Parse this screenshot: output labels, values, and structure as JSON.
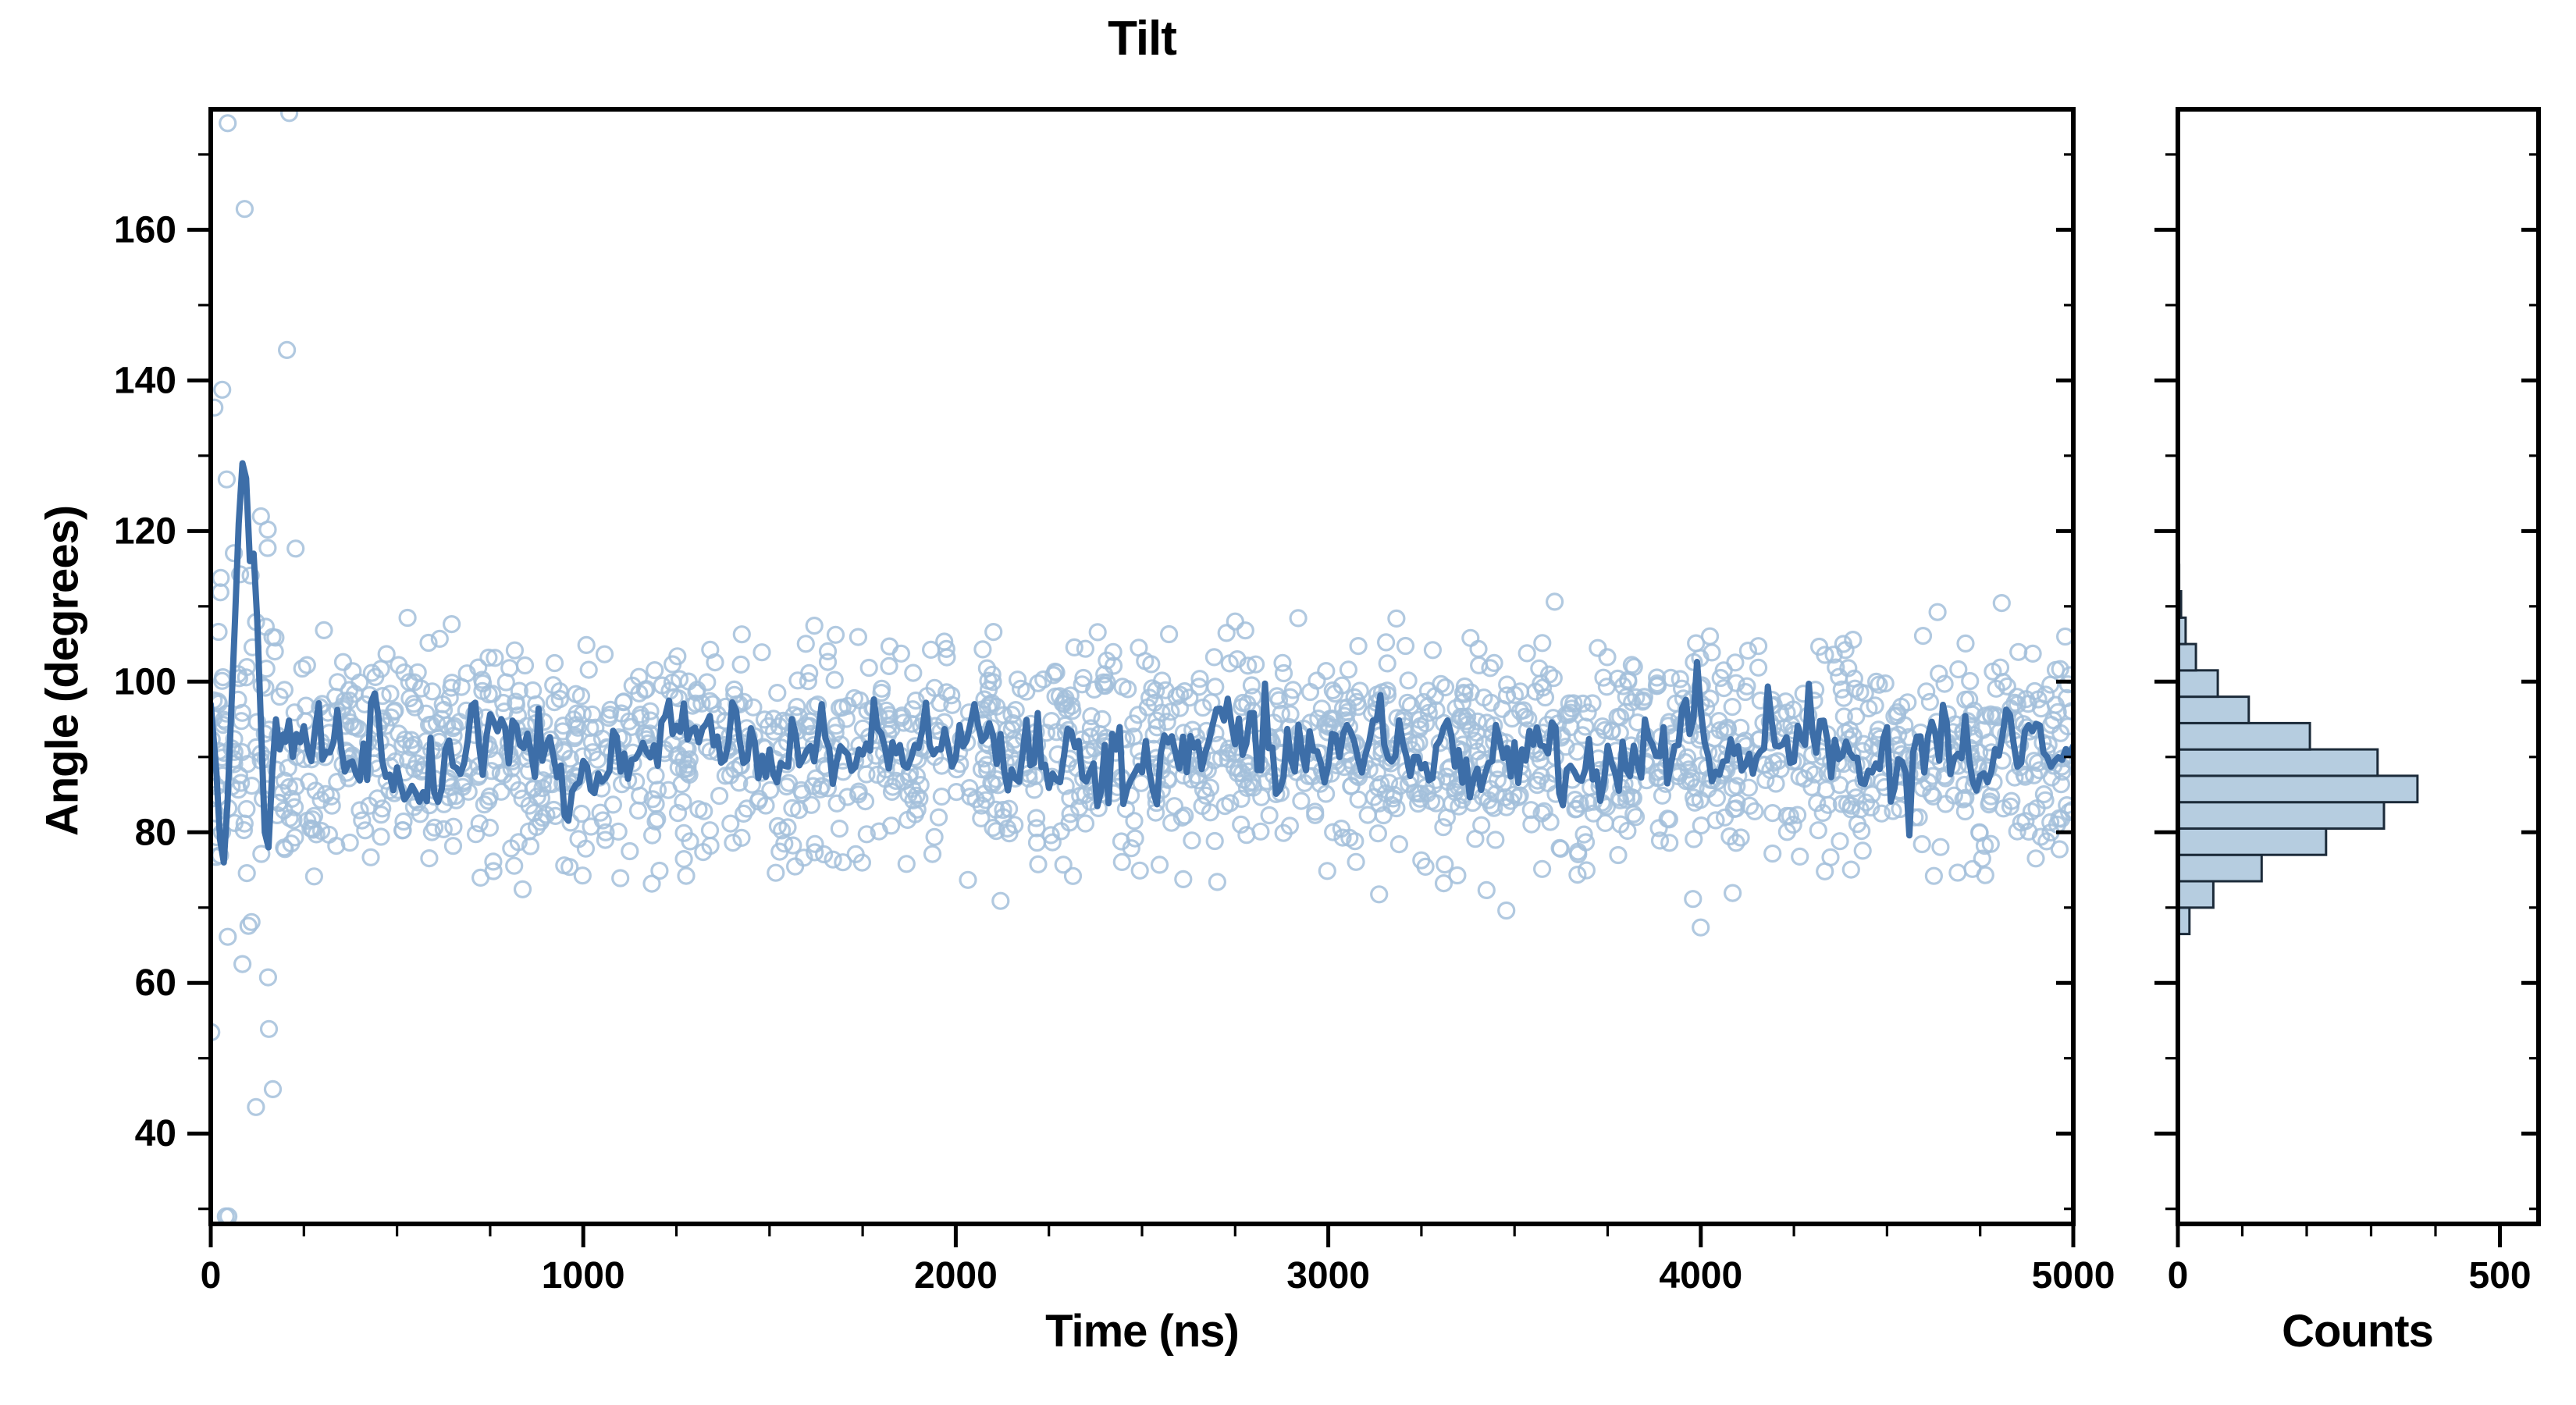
{
  "title": "Tilt",
  "colors": {
    "scatter_edge": "#a3bfdb",
    "mean_line": "#3d6ea8",
    "hist_fill": "#b6cde0",
    "hist_edge": "#1c2b3a",
    "axis": "#000000",
    "background": "#ffffff"
  },
  "chart_data": [
    {
      "type": "scatter",
      "name": "tilt-timeseries",
      "title": "Tilt",
      "xlabel": "Time (ns)",
      "ylabel": "Angle (degrees)",
      "xlim": [
        0,
        5000
      ],
      "ylim": [
        28,
        176
      ],
      "xticks": [
        0,
        1000,
        2000,
        3000,
        4000,
        5000
      ],
      "yticks": [
        40,
        60,
        80,
        100,
        120,
        140,
        160
      ],
      "x_minor_step": 250,
      "y_minor_step": 10,
      "grid": false,
      "legend": "none",
      "scatter_generator": {
        "comment": "open circles; dense steady-state cloud plus wide transient column near t=0",
        "seed": 1234,
        "steady": {
          "n": 1900,
          "t_range": [
            0,
            5000
          ],
          "mean": 90.5,
          "sd": 7.2
        },
        "transient": {
          "n": 46,
          "t_range": [
            0,
            230
          ],
          "mean": 100,
          "sd": 38,
          "clip": [
            29,
            175.5
          ]
        }
      },
      "series": [
        {
          "name": "running mean",
          "style": "line",
          "transient_keypoints": [
            [
              0,
              97
            ],
            [
              15,
              88
            ],
            [
              25,
              79
            ],
            [
              35,
              76
            ],
            [
              45,
              84
            ],
            [
              55,
              96
            ],
            [
              65,
              108
            ],
            [
              75,
              121
            ],
            [
              85,
              129
            ],
            [
              95,
              127
            ],
            [
              105,
              116
            ],
            [
              115,
              117
            ],
            [
              125,
              108
            ],
            [
              135,
              94
            ],
            [
              145,
              80
            ],
            [
              155,
              78
            ],
            [
              165,
              88
            ],
            [
              175,
              95
            ],
            [
              185,
              91
            ],
            [
              195,
              93
            ],
            [
              200,
              92
            ]
          ],
          "steady_generator": {
            "t_start": 210,
            "t_end": 5000,
            "t_step": 10,
            "mean": 90.5,
            "sd": 2.9,
            "ar": 0.45,
            "seed": 77
          }
        }
      ]
    },
    {
      "type": "bar",
      "name": "tilt-histogram",
      "orientation": "horizontal",
      "xlabel": "Counts",
      "xlim": [
        0,
        560
      ],
      "xticks": [
        0,
        500
      ],
      "x_minor_step": 100,
      "ylim": [
        28,
        176
      ],
      "y_minor_step": 10,
      "yticks": [
        40,
        60,
        80,
        100,
        120,
        140,
        160
      ],
      "bin_edges": [
        66.5,
        70,
        73.5,
        77,
        80.5,
        84,
        87.5,
        91,
        94.5,
        98,
        101.5,
        105,
        108.5,
        112,
        115.5
      ],
      "counts": [
        18,
        55,
        130,
        230,
        320,
        372,
        310,
        205,
        110,
        62,
        28,
        12,
        5,
        2
      ]
    }
  ]
}
